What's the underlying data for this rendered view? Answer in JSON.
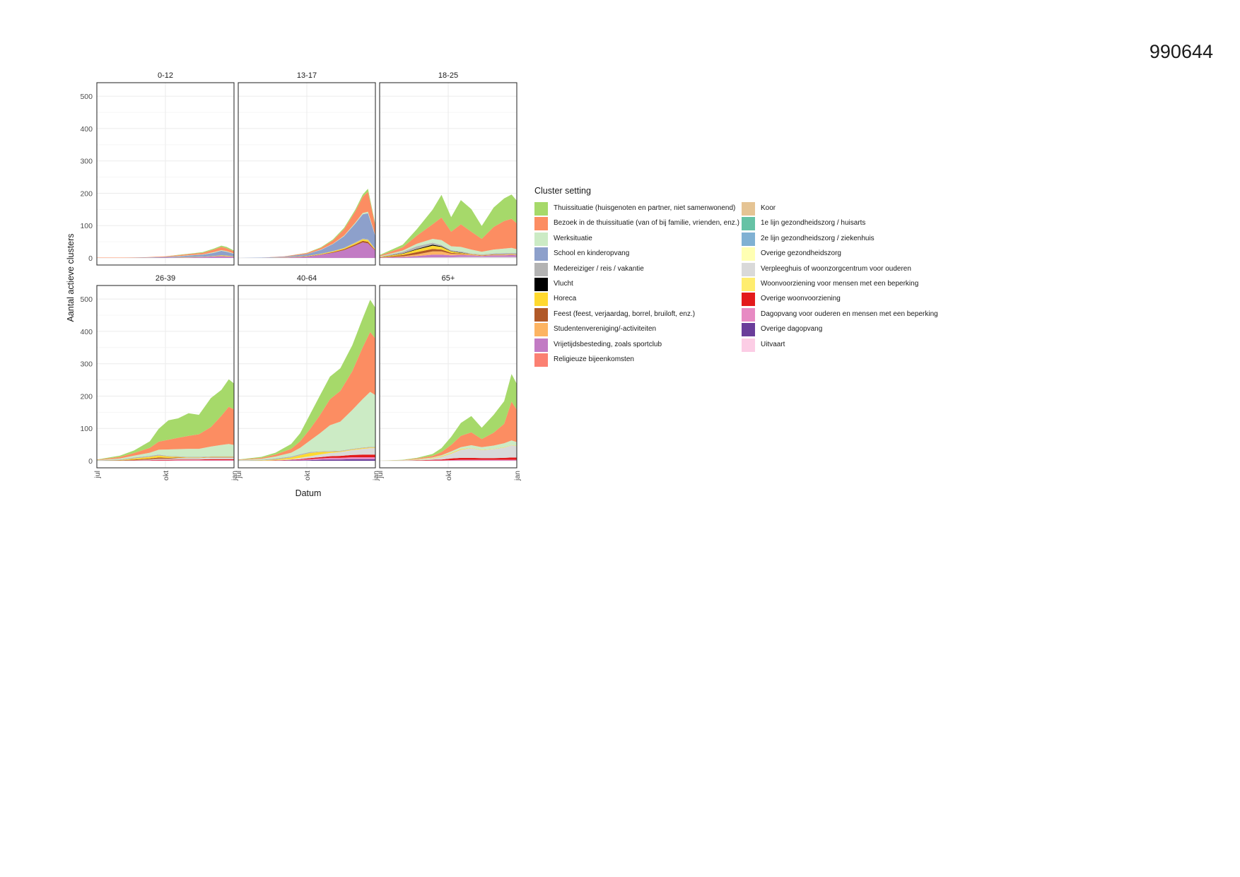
{
  "document": {
    "id_label": "990644"
  },
  "chart_data": {
    "type": "area",
    "stacked": true,
    "facet_layout": "2 rows x 3 columns",
    "ylabel": "Aantal actieve clusters",
    "xlabel": "Datum",
    "ylim": [
      0,
      520
    ],
    "yticks": [
      "0",
      "100",
      "200",
      "300",
      "400",
      "500"
    ],
    "xlim": [
      "2020-07-01",
      "2021-01-01"
    ],
    "xticks": [
      {
        "date": "2020-07-01",
        "label": "jul"
      },
      {
        "date": "2020-10-01",
        "label": "okt"
      },
      {
        "date": "2021-01-01",
        "label": "jan"
      }
    ],
    "grid": true,
    "legend": {
      "title": "Cluster setting",
      "placement": "right",
      "columns": [
        [
          {
            "label": "Thuissituatie (huisgenoten en partner, niet samenwonend)",
            "color": "#a6d96a"
          },
          {
            "label": "Bezoek in de thuissituatie (van of bij familie, vrienden, enz.)",
            "color": "#fc8d62"
          },
          {
            "label": "Werksituatie",
            "color": "#ccebc5"
          },
          {
            "label": "School en kinderopvang",
            "color": "#8da0cb"
          },
          {
            "label": "Medereiziger / reis / vakantie",
            "color": "#b3b3b3"
          },
          {
            "label": "Vlucht",
            "color": "#000000"
          },
          {
            "label": "Horeca",
            "color": "#ffd92f"
          },
          {
            "label": "Feest (feest, verjaardag, borrel, bruiloft, enz.)",
            "color": "#b15928"
          },
          {
            "label": "Studentenvereniging/-activiteiten",
            "color": "#fdb462"
          },
          {
            "label": "Vrijetijdsbesteding, zoals sportclub",
            "color": "#c27bc4"
          },
          {
            "label": "Religieuze bijeenkomsten",
            "color": "#fb8072"
          }
        ],
        [
          {
            "label": "Koor",
            "color": "#e5c494"
          },
          {
            "label": "1e lijn gezondheidszorg / huisarts",
            "color": "#66c2a5"
          },
          {
            "label": "2e lijn gezondheidszorg / ziekenhuis",
            "color": "#80b1d3"
          },
          {
            "label": "Overige gezondheidszorg",
            "color": "#ffffb3"
          },
          {
            "label": "Verpleeghuis of woonzorgcentrum voor ouderen",
            "color": "#d9d9d9"
          },
          {
            "label": "Woonvoorziening voor mensen met een beperking",
            "color": "#ffed6f"
          },
          {
            "label": "Overige woonvoorziening",
            "color": "#e31a1c"
          },
          {
            "label": "Dagopvang voor ouderen en mensen met een beperking",
            "color": "#e78ac3"
          },
          {
            "label": "Overige dagopvang",
            "color": "#6a3d9a"
          },
          {
            "label": "Uitvaart",
            "color": "#fccde5"
          }
        ]
      ]
    },
    "series_order": [
      "Uitvaart",
      "Overige dagopvang",
      "Dagopvang voor ouderen en mensen met een beperking",
      "Overige woonvoorziening",
      "Woonvoorziening voor mensen met een beperking",
      "Verpleeghuis of woonzorgcentrum voor ouderen",
      "Overige gezondheidszorg",
      "2e lijn gezondheidszorg / ziekenhuis",
      "1e lijn gezondheidszorg / huisarts",
      "Koor",
      "Religieuze bijeenkomsten",
      "Vrijetijdsbesteding, zoals sportclub",
      "Studentenvereniging/-activiteiten",
      "Feest (feest, verjaardag, borrel, bruiloft, enz.)",
      "Horeca",
      "Vlucht",
      "Medereiziger / reis / vakantie",
      "School en kinderopvang",
      "Werksituatie",
      "Bezoek in de thuissituatie (van of bij familie, vrienden, enz.)",
      "Thuissituatie (huisgenoten en partner, niet samenwonend)"
    ],
    "panels": [
      {
        "title": "0-12",
        "x": [
          "2020-07-01",
          "2020-08-01",
          "2020-09-01",
          "2020-10-01",
          "2020-10-20",
          "2020-11-05",
          "2020-11-20",
          "2020-12-05",
          "2020-12-15",
          "2020-12-22",
          "2021-01-01"
        ],
        "series": {
          "Thuissituatie (huisgenoten en partner, niet samenwonend)": [
            0,
            0,
            0,
            0,
            1,
            1,
            2,
            3,
            4,
            4,
            3
          ],
          "Bezoek in de thuissituatie (van of bij familie, vrienden, enz.)": [
            1,
            1,
            1,
            2,
            3,
            4,
            5,
            8,
            10,
            9,
            6
          ],
          "Werksituatie": [
            0,
            0,
            0,
            0,
            1,
            1,
            1,
            2,
            2,
            2,
            1
          ],
          "School en kinderopvang": [
            0,
            0,
            1,
            2,
            3,
            5,
            6,
            10,
            14,
            12,
            8
          ],
          "Vrijetijdsbesteding, zoals sportclub": [
            0,
            0,
            0,
            1,
            1,
            2,
            3,
            5,
            6,
            5,
            4
          ],
          "Horeca": [
            0,
            0,
            0,
            0,
            1,
            1,
            1,
            1,
            2,
            2,
            1
          ]
        }
      },
      {
        "title": "13-17",
        "x": [
          "2020-07-01",
          "2020-08-01",
          "2020-09-01",
          "2020-10-01",
          "2020-10-20",
          "2020-11-05",
          "2020-11-20",
          "2020-12-05",
          "2020-12-15",
          "2020-12-22",
          "2021-01-01"
        ],
        "series": {
          "Thuissituatie (huisgenoten en partner, niet samenwonend)": [
            0,
            0,
            0,
            1,
            2,
            3,
            4,
            5,
            7,
            9,
            4
          ],
          "Bezoek in de thuissituatie (van of bij familie, vrienden, enz.)": [
            0,
            0,
            1,
            3,
            5,
            10,
            20,
            35,
            50,
            62,
            30
          ],
          "Werksituatie": [
            0,
            0,
            0,
            0,
            1,
            1,
            2,
            3,
            4,
            5,
            2
          ],
          "School en kinderopvang": [
            0,
            1,
            2,
            6,
            12,
            22,
            36,
            58,
            75,
            80,
            40
          ],
          "Vrijetijdsbesteding, zoals sportclub": [
            0,
            0,
            1,
            4,
            10,
            16,
            24,
            38,
            48,
            45,
            22
          ],
          "Horeca": [
            0,
            0,
            1,
            1,
            2,
            2,
            3,
            4,
            5,
            5,
            2
          ],
          "Feest (feest, verjaardag, borrel, bruiloft, enz.)": [
            0,
            0,
            0,
            1,
            1,
            2,
            3,
            4,
            5,
            5,
            2
          ],
          "Medereiziger / reis / vakantie": [
            0,
            0,
            0,
            0,
            0,
            1,
            1,
            2,
            2,
            3,
            1
          ]
        }
      },
      {
        "title": "18-25",
        "x": [
          "2020-07-01",
          "2020-08-01",
          "2020-08-20",
          "2020-09-10",
          "2020-09-22",
          "2020-10-05",
          "2020-10-18",
          "2020-11-01",
          "2020-11-15",
          "2020-12-01",
          "2020-12-15",
          "2020-12-25",
          "2021-01-01"
        ],
        "series": {
          "Thuissituatie (huisgenoten en partner, niet samenwonend)": [
            2,
            8,
            20,
            45,
            70,
            45,
            75,
            70,
            40,
            60,
            70,
            75,
            70
          ],
          "Bezoek in de thuissituatie (van of bij familie, vrienden, enz.)": [
            2,
            10,
            25,
            45,
            70,
            45,
            70,
            55,
            40,
            70,
            85,
            90,
            80
          ],
          "Werksituatie": [
            1,
            4,
            8,
            12,
            15,
            12,
            14,
            12,
            8,
            12,
            14,
            15,
            12
          ],
          "Medereiziger / reis / vakantie": [
            1,
            5,
            8,
            6,
            4,
            3,
            3,
            2,
            2,
            3,
            4,
            4,
            4
          ],
          "Studentenvereniging/-activiteiten": [
            0,
            2,
            5,
            10,
            10,
            5,
            3,
            2,
            1,
            1,
            1,
            1,
            1
          ],
          "Horeca": [
            1,
            4,
            8,
            10,
            8,
            4,
            2,
            1,
            1,
            1,
            1,
            1,
            1
          ],
          "Feest (feest, verjaardag, borrel, bruiloft, enz.)": [
            1,
            4,
            7,
            8,
            6,
            3,
            2,
            1,
            1,
            1,
            1,
            1,
            1
          ],
          "Vrijetijdsbesteding, zoals sportclub": [
            1,
            3,
            5,
            8,
            8,
            6,
            6,
            5,
            3,
            5,
            5,
            6,
            5
          ],
          "Vlucht": [
            0,
            1,
            2,
            3,
            2,
            1,
            1,
            0,
            0,
            0,
            0,
            0,
            0
          ],
          "Verpleeghuis of woonzorgcentrum voor ouderen": [
            0,
            0,
            1,
            2,
            2,
            2,
            3,
            3,
            3,
            3,
            3,
            3,
            3
          ]
        }
      },
      {
        "title": "26-39",
        "x": [
          "2020-07-01",
          "2020-08-01",
          "2020-08-20",
          "2020-09-10",
          "2020-09-22",
          "2020-10-05",
          "2020-10-18",
          "2020-11-01",
          "2020-11-15",
          "2020-12-01",
          "2020-12-15",
          "2020-12-25",
          "2021-01-01"
        ],
        "series": {
          "Thuissituatie (huisgenoten en partner, niet samenwonend)": [
            1,
            4,
            8,
            20,
            40,
            60,
            60,
            70,
            60,
            90,
            80,
            85,
            80
          ],
          "Bezoek in de thuissituatie (van of bij familie, vrienden, enz.)": [
            1,
            5,
            8,
            15,
            25,
            30,
            35,
            40,
            45,
            60,
            90,
            115,
            110
          ],
          "Werksituatie": [
            1,
            3,
            6,
            10,
            15,
            20,
            22,
            25,
            25,
            30,
            35,
            38,
            35
          ],
          "Medereiziger / reis / vakantie": [
            1,
            2,
            3,
            3,
            3,
            2,
            2,
            2,
            2,
            2,
            2,
            2,
            2
          ],
          "Horeca": [
            0,
            1,
            3,
            5,
            6,
            4,
            2,
            1,
            1,
            1,
            1,
            1,
            1
          ],
          "Feest (feest, verjaardag, borrel, bruiloft, enz.)": [
            0,
            1,
            2,
            3,
            4,
            3,
            2,
            1,
            1,
            1,
            1,
            1,
            1
          ],
          "Verpleeghuis of woonzorgcentrum voor ouderen": [
            0,
            0,
            1,
            2,
            3,
            3,
            4,
            4,
            4,
            5,
            5,
            5,
            5
          ],
          "Overige woonvoorziening": [
            0,
            0,
            1,
            1,
            2,
            2,
            2,
            2,
            2,
            3,
            3,
            3,
            3
          ],
          "Dagopvang voor ouderen en mensen met een beperking": [
            0,
            0,
            0,
            1,
            1,
            1,
            2,
            2,
            2,
            2,
            2,
            2,
            2
          ]
        }
      },
      {
        "title": "40-64",
        "x": [
          "2020-07-01",
          "2020-08-01",
          "2020-08-20",
          "2020-09-10",
          "2020-09-22",
          "2020-10-05",
          "2020-10-18",
          "2020-11-01",
          "2020-11-15",
          "2020-12-01",
          "2020-12-15",
          "2020-12-25",
          "2021-01-01"
        ],
        "series": {
          "Thuissituatie (huisgenoten en partner, niet samenwonend)": [
            1,
            3,
            6,
            15,
            25,
            45,
            60,
            70,
            70,
            80,
            90,
            100,
            95
          ],
          "Bezoek in de thuissituatie (van of bij familie, vrienden, enz.)": [
            1,
            3,
            6,
            12,
            20,
            35,
            55,
            80,
            95,
            120,
            160,
            185,
            175
          ],
          "Werksituatie": [
            1,
            3,
            6,
            12,
            20,
            35,
            55,
            80,
            90,
            120,
            150,
            170,
            160
          ],
          "Medereiziger / reis / vakantie": [
            1,
            2,
            3,
            3,
            3,
            3,
            2,
            2,
            2,
            2,
            2,
            2,
            2
          ],
          "Horeca": [
            0,
            1,
            2,
            5,
            8,
            10,
            8,
            4,
            2,
            2,
            2,
            2,
            2
          ],
          "Verpleeghuis of woonzorgcentrum voor ouderen": [
            0,
            0,
            1,
            2,
            4,
            6,
            8,
            10,
            12,
            15,
            18,
            20,
            20
          ],
          "Overige woonvoorziening": [
            0,
            0,
            1,
            1,
            2,
            3,
            4,
            5,
            6,
            7,
            8,
            8,
            8
          ],
          "Dagopvang voor ouderen en mensen met een beperking": [
            0,
            0,
            0,
            1,
            2,
            3,
            4,
            5,
            5,
            6,
            6,
            6,
            6
          ],
          "Overige dagopvang": [
            0,
            0,
            0,
            1,
            1,
            2,
            3,
            4,
            4,
            5,
            5,
            5,
            5
          ]
        }
      },
      {
        "title": "65+",
        "x": [
          "2020-07-01",
          "2020-08-01",
          "2020-08-20",
          "2020-09-10",
          "2020-09-22",
          "2020-10-05",
          "2020-10-18",
          "2020-11-01",
          "2020-11-15",
          "2020-12-01",
          "2020-12-15",
          "2020-12-25",
          "2021-01-01"
        ],
        "series": {
          "Thuissituatie (huisgenoten en partner, niet samenwonend)": [
            0,
            1,
            2,
            6,
            12,
            25,
            40,
            50,
            35,
            55,
            70,
            85,
            80
          ],
          "Bezoek in de thuissituatie (van of bij familie, vrienden, enz.)": [
            0,
            1,
            2,
            5,
            10,
            20,
            35,
            40,
            25,
            40,
            60,
            120,
            100
          ],
          "Werksituatie": [
            0,
            0,
            1,
            2,
            3,
            5,
            6,
            8,
            8,
            10,
            12,
            14,
            12
          ],
          "Verpleeghuis of woonzorgcentrum voor ouderen": [
            0,
            1,
            2,
            4,
            8,
            15,
            25,
            30,
            25,
            28,
            32,
            38,
            35
          ],
          "Overige woonvoorziening": [
            0,
            0,
            1,
            2,
            3,
            5,
            6,
            6,
            5,
            5,
            6,
            7,
            7
          ],
          "Dagopvang voor ouderen en mensen met een beperking": [
            0,
            0,
            0,
            1,
            1,
            2,
            3,
            3,
            3,
            3,
            3,
            3,
            3
          ],
          "Horeca": [
            0,
            0,
            1,
            1,
            2,
            2,
            2,
            1,
            1,
            1,
            1,
            1,
            1
          ]
        }
      }
    ]
  }
}
